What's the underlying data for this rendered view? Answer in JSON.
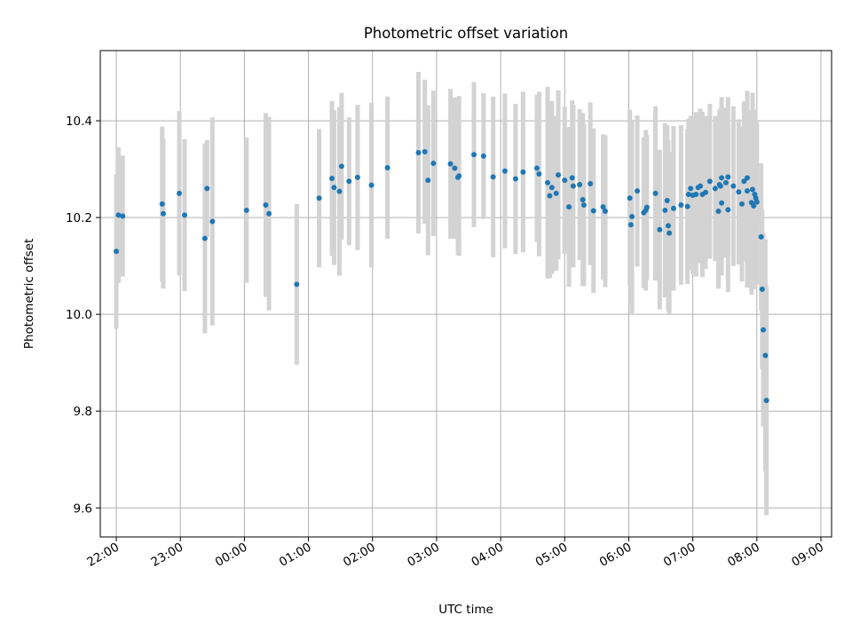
{
  "chart_data": {
    "type": "scatter",
    "title": "Photometric offset variation",
    "xlabel": "UTC time",
    "ylabel": "Photometric offset",
    "grid": true,
    "xlim": [
      "21:45",
      "09:10"
    ],
    "ylim": [
      9.54,
      10.545
    ],
    "x_ticks": [
      "22:00",
      "23:00",
      "00:00",
      "01:00",
      "02:00",
      "03:00",
      "04:00",
      "05:00",
      "06:00",
      "07:00",
      "08:00",
      "09:00"
    ],
    "y_ticks": [
      "9.6",
      "9.8",
      "10.0",
      "10.2",
      "10.4"
    ],
    "series": [
      {
        "marker_color": "#1f77b4",
        "errorbar_color": "#d3d3d3",
        "points": [
          [
            "22:00",
            10.13,
            0.16
          ],
          [
            "22:02",
            10.205,
            0.14
          ],
          [
            "22:06",
            10.203,
            0.125
          ],
          [
            "22:43",
            10.228,
            0.16
          ],
          [
            "22:44",
            10.208,
            0.155
          ],
          [
            "22:59",
            10.25,
            0.17
          ],
          [
            "23:04",
            10.205,
            0.157
          ],
          [
            "23:23",
            10.157,
            0.196
          ],
          [
            "23:25",
            10.26,
            0.1
          ],
          [
            "23:30",
            10.192,
            0.215
          ],
          [
            "00:02",
            10.215,
            0.15
          ],
          [
            "00:20",
            10.226,
            0.19
          ],
          [
            "00:23",
            10.208,
            0.2
          ],
          [
            "00:49",
            10.062,
            0.166
          ],
          [
            "01:10",
            10.24,
            0.143
          ],
          [
            "01:22",
            10.281,
            0.16
          ],
          [
            "01:24",
            10.262,
            0.16
          ],
          [
            "01:29",
            10.254,
            0.174
          ],
          [
            "01:31",
            10.306,
            0.152
          ],
          [
            "01:38",
            10.275,
            0.132
          ],
          [
            "01:46",
            10.283,
            0.15
          ],
          [
            "01:59",
            10.267,
            0.17
          ],
          [
            "02:14",
            10.303,
            0.147
          ],
          [
            "02:43",
            10.334,
            0.167
          ],
          [
            "02:49",
            10.336,
            0.149
          ],
          [
            "02:52",
            10.277,
            0.155
          ],
          [
            "02:57",
            10.312,
            0.15
          ],
          [
            "03:13",
            10.311,
            0.155
          ],
          [
            "03:17",
            10.302,
            0.146
          ],
          [
            "03:20",
            10.283,
            0.16
          ],
          [
            "03:21",
            10.286,
            0.165
          ],
          [
            "03:35",
            10.33,
            0.15
          ],
          [
            "03:44",
            10.327,
            0.13
          ],
          [
            "03:53",
            10.284,
            0.166
          ],
          [
            "04:04",
            10.296,
            0.16
          ],
          [
            "04:14",
            10.28,
            0.155
          ],
          [
            "04:21",
            10.294,
            0.166
          ],
          [
            "04:34",
            10.302,
            0.152
          ],
          [
            "04:36",
            10.29,
            0.17
          ],
          [
            "04:44",
            10.272,
            0.198
          ],
          [
            "04:46",
            10.245,
            0.17
          ],
          [
            "04:48",
            10.262,
            0.179
          ],
          [
            "04:52",
            10.25,
            0.16
          ],
          [
            "04:54",
            10.288,
            0.175
          ],
          [
            "05:00",
            10.277,
            0.152
          ],
          [
            "05:04",
            10.222,
            0.165
          ],
          [
            "05:07",
            10.282,
            0.16
          ],
          [
            "05:08",
            10.265,
            0.168
          ],
          [
            "05:14",
            10.268,
            0.156
          ],
          [
            "05:17",
            10.237,
            0.179
          ],
          [
            "05:18",
            10.226,
            0.167
          ],
          [
            "05:24",
            10.27,
            0.168
          ],
          [
            "05:27",
            10.214,
            0.17
          ],
          [
            "05:36",
            10.222,
            0.15
          ],
          [
            "05:38",
            10.213,
            0.157
          ],
          [
            "06:01",
            10.24,
            0.183
          ],
          [
            "06:03",
            10.202,
            0.2
          ],
          [
            "06:02",
            10.185,
            0.166
          ],
          [
            "06:08",
            10.255,
            0.156
          ],
          [
            "06:14",
            10.21,
            0.156
          ],
          [
            "06:16",
            10.215,
            0.166
          ],
          [
            "06:17",
            10.221,
            0.15
          ],
          [
            "06:25",
            10.25,
            0.18
          ],
          [
            "06:29",
            10.175,
            0.165
          ],
          [
            "06:34",
            10.215,
            0.18
          ],
          [
            "06:36",
            10.235,
            0.156
          ],
          [
            "06:37",
            10.183,
            0.177
          ],
          [
            "06:38",
            10.168,
            0.168
          ],
          [
            "06:42",
            10.219,
            0.17
          ],
          [
            "06:49",
            10.226,
            0.165
          ],
          [
            "06:55",
            10.223,
            0.16
          ],
          [
            "06:56",
            10.248,
            0.156
          ],
          [
            "06:58",
            10.26,
            0.15
          ],
          [
            "07:00",
            10.246,
            0.163
          ],
          [
            "07:03",
            10.248,
            0.17
          ],
          [
            "07:05",
            10.262,
            0.153
          ],
          [
            "07:07",
            10.265,
            0.16
          ],
          [
            "07:09",
            10.248,
            0.171
          ],
          [
            "07:12",
            10.252,
            0.158
          ],
          [
            "07:16",
            10.275,
            0.16
          ],
          [
            "07:21",
            10.26,
            0.15
          ],
          [
            "07:24",
            10.213,
            0.16
          ],
          [
            "07:25",
            10.268,
            0.155
          ],
          [
            "07:26",
            10.265,
            0.16
          ],
          [
            "07:27",
            10.282,
            0.167
          ],
          [
            "07:27",
            10.23,
            0.15
          ],
          [
            "07:31",
            10.272,
            0.155
          ],
          [
            "07:33",
            10.216,
            0.17
          ],
          [
            "07:33",
            10.284,
            0.165
          ],
          [
            "07:38",
            10.265,
            0.165
          ],
          [
            "07:43",
            10.253,
            0.15
          ],
          [
            "07:46",
            10.228,
            0.16
          ],
          [
            "07:48",
            10.275,
            0.165
          ],
          [
            "07:51",
            10.282,
            0.18
          ],
          [
            "07:51",
            10.255,
            0.2
          ],
          [
            "07:55",
            10.231,
            0.19
          ],
          [
            "07:56",
            10.258,
            0.2
          ],
          [
            "07:57",
            10.224,
            0.172
          ],
          [
            "07:58",
            10.248,
            0.175
          ],
          [
            "07:59",
            10.24,
            0.16
          ],
          [
            "08:00",
            10.232,
            0.17
          ],
          [
            "08:04",
            10.16,
            0.152
          ],
          [
            "08:05",
            10.052,
            0.165
          ],
          [
            "08:06",
            9.968,
            0.2
          ],
          [
            "08:08",
            9.915,
            0.24
          ],
          [
            "08:09",
            9.822,
            0.237
          ]
        ]
      }
    ]
  }
}
